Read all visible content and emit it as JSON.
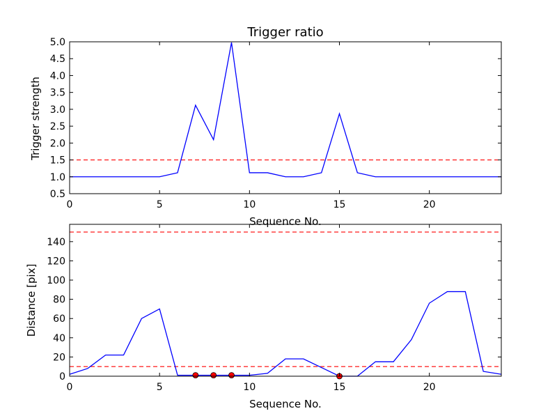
{
  "chart_data": [
    {
      "type": "line",
      "title": "Trigger ratio",
      "xlabel": "Sequence No.",
      "ylabel": "Trigger strength",
      "xlim": [
        0,
        24
      ],
      "ylim": [
        0.5,
        5.0
      ],
      "xticks": [
        "0",
        "5",
        "10",
        "15",
        "20"
      ],
      "yticks": [
        "0.5",
        "1.0",
        "1.5",
        "2.0",
        "2.5",
        "3.0",
        "3.5",
        "4.0",
        "4.5",
        "5.0"
      ],
      "grid": false,
      "series": [
        {
          "color": "#0000ff",
          "x": [
            0,
            1,
            2,
            3,
            4,
            5,
            6,
            7,
            8,
            9,
            10,
            11,
            12,
            13,
            14,
            15,
            16,
            17,
            18,
            19,
            20,
            21,
            22,
            23,
            24
          ],
          "values": [
            1.0,
            1.0,
            1.0,
            1.0,
            1.0,
            1.0,
            1.12,
            3.12,
            2.1,
            4.98,
            1.12,
            1.12,
            1.0,
            1.0,
            1.12,
            2.87,
            1.12,
            1.0,
            1.0,
            1.0,
            1.0,
            1.0,
            1.0,
            1.0,
            1.0
          ]
        }
      ],
      "hlines": [
        {
          "y": 1.5,
          "color": "#ff0000",
          "style": "dashed"
        }
      ]
    },
    {
      "type": "line",
      "xlabel": "Sequence No.",
      "ylabel": "Distance [pix]",
      "xlim": [
        0,
        24
      ],
      "ylim": [
        0,
        158
      ],
      "xticks": [
        "0",
        "5",
        "10",
        "15",
        "20"
      ],
      "yticks": [
        "0",
        "20",
        "40",
        "60",
        "80",
        "100",
        "120",
        "140"
      ],
      "grid": false,
      "series": [
        {
          "color": "#0000ff",
          "x": [
            0,
            1,
            2,
            3,
            4,
            5,
            6,
            7,
            8,
            9,
            10,
            11,
            12,
            13,
            14,
            15,
            16,
            17,
            18,
            19,
            20,
            21,
            22,
            23,
            24
          ],
          "values": [
            2,
            8,
            22,
            22,
            60,
            70,
            1,
            1,
            1,
            1,
            1,
            3,
            18,
            18,
            9,
            0,
            0,
            15,
            15,
            38,
            76,
            88,
            88,
            5,
            2
          ]
        }
      ],
      "markers": {
        "color": "#ff0000",
        "x": [
          7,
          8,
          9,
          15
        ],
        "values": [
          1,
          1,
          1,
          0
        ]
      },
      "hlines": [
        {
          "y": 150,
          "color": "#ff0000",
          "style": "dashed"
        },
        {
          "y": 10,
          "color": "#ff0000",
          "style": "dashed"
        }
      ]
    }
  ]
}
